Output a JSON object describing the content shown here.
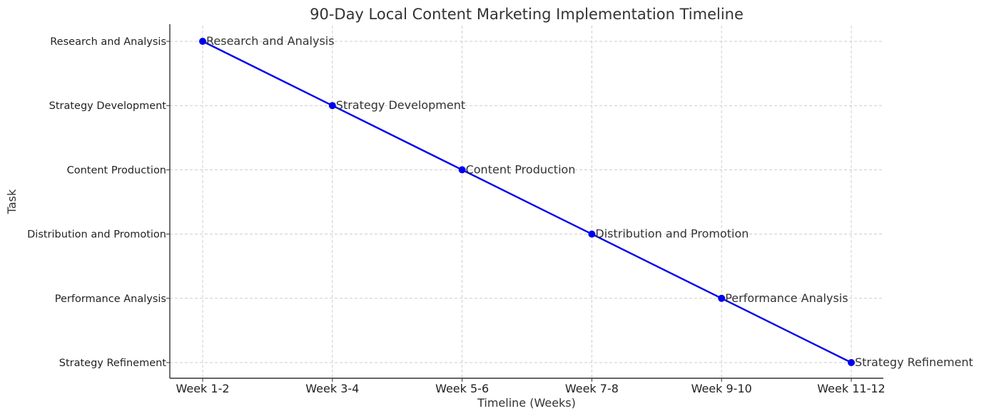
{
  "chart_data": {
    "type": "line",
    "title": "90-Day Local Content Marketing Implementation Timeline",
    "xlabel": "Timeline (Weeks)",
    "ylabel": "Task",
    "x_categories": [
      "Week 1-2",
      "Week 3-4",
      "Week 5-6",
      "Week 7-8",
      "Week 9-10",
      "Week 11-12"
    ],
    "y_categories": [
      "Research and Analysis",
      "Strategy Development",
      "Content Production",
      "Distribution and Promotion",
      "Performance Analysis",
      "Strategy Refinement"
    ],
    "y_order": "top-to-bottom",
    "series": [
      {
        "points": [
          {
            "x": "Week 1-2",
            "y": "Research and Analysis",
            "label": "Research and Analysis"
          },
          {
            "x": "Week 3-4",
            "y": "Strategy Development",
            "label": "Strategy Development"
          },
          {
            "x": "Week 5-6",
            "y": "Content Production",
            "label": "Content Production"
          },
          {
            "x": "Week 7-8",
            "y": "Distribution and Promotion",
            "label": "Distribution and Promotion"
          },
          {
            "x": "Week 9-10",
            "y": "Performance Analysis",
            "label": "Performance Analysis"
          },
          {
            "x": "Week 11-12",
            "y": "Strategy Refinement",
            "label": "Strategy Refinement"
          }
        ]
      }
    ],
    "grid": true,
    "line_color": "#0000ee",
    "marker_color": "#0000ee",
    "marker": "circle"
  }
}
